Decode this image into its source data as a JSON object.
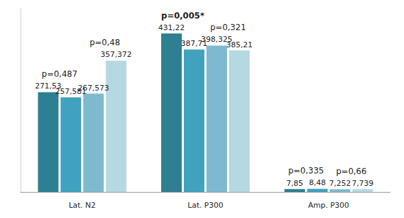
{
  "chart_data": {
    "type": "bar",
    "categories": [
      "Lat. N2",
      "Lat. P300",
      "Amp. P300"
    ],
    "series": [
      {
        "color": "#2f7f92",
        "values": [
          271.53,
          431.22,
          7.85
        ],
        "value_labels": [
          "271,53",
          "431,22",
          "7,85"
        ]
      },
      {
        "color": "#41a2bf",
        "values": [
          257.581,
          387.71,
          8.48
        ],
        "value_labels": [
          "257,581",
          "387,71",
          "8,48"
        ]
      },
      {
        "color": "#7dbad0",
        "values": [
          267.573,
          398.325,
          7.252
        ],
        "value_labels": [
          "267,573",
          "398,325",
          "7,252"
        ]
      },
      {
        "color": "#b6d8e3",
        "values": [
          357.372,
          385.21,
          7.739
        ],
        "value_labels": [
          "357,372",
          "385,21",
          "7,739"
        ]
      }
    ],
    "annotations": [
      {
        "category": "Lat. N2",
        "texts": [
          "p=0,487",
          "p=0,48"
        ]
      },
      {
        "category": "Lat. P300",
        "texts": [
          "p=0,005*",
          "p=0,321"
        ]
      },
      {
        "category": "Amp. P300",
        "texts": [
          "p=0,335",
          "p=0,66"
        ]
      }
    ],
    "ylim": [
      0,
      500
    ],
    "data_labels": true,
    "tick_labels": "x",
    "grid": false
  }
}
